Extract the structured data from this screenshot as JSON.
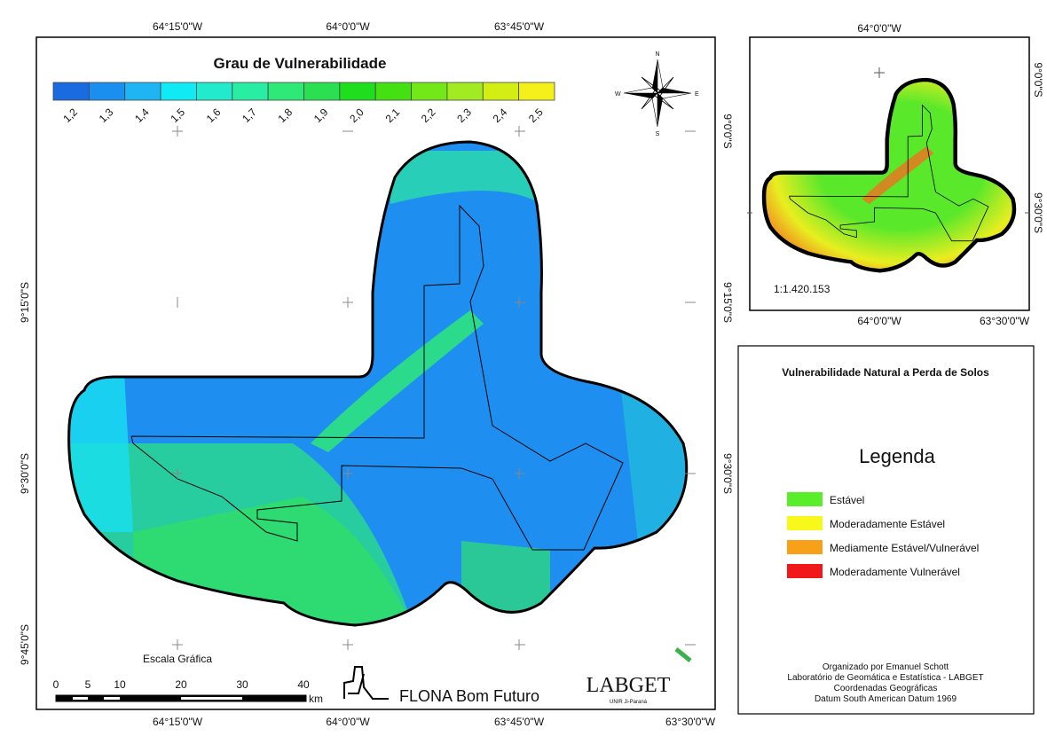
{
  "main_map": {
    "top_labels": [
      "64°15'0\"W",
      "64°0'0\"W",
      "63°45'0\"W"
    ],
    "bottom_labels": [
      "64°15'0\"W",
      "64°0'0\"W",
      "63°45'0\"W",
      "63°30'0\"W"
    ],
    "left_labels": [
      "9°15'0\"S",
      "9°30'0\"S",
      "9°45'0\"S"
    ],
    "right_labels": [
      "9°0'0\"S",
      "9°15'0\"S",
      "9°30'0\"S"
    ],
    "colorbar": {
      "title": "Grau de Vulnerabilidade",
      "classes": [
        {
          "label": "1,2",
          "color": "#1a6be0"
        },
        {
          "label": "1,3",
          "color": "#1b8fef"
        },
        {
          "label": "1,4",
          "color": "#1fb4f4"
        },
        {
          "label": "1,5",
          "color": "#10eaf5"
        },
        {
          "label": "1,6",
          "color": "#22eacc"
        },
        {
          "label": "1,7",
          "color": "#28eda2"
        },
        {
          "label": "1,8",
          "color": "#2ee878"
        },
        {
          "label": "1,9",
          "color": "#2ae050"
        },
        {
          "label": "2,0",
          "color": "#1ede1e"
        },
        {
          "label": "2,1",
          "color": "#44e012"
        },
        {
          "label": "2,2",
          "color": "#72e818"
        },
        {
          "label": "2,3",
          "color": "#a2ea22"
        },
        {
          "label": "2,4",
          "color": "#d2ee12"
        },
        {
          "label": "2,5",
          "color": "#f6f01a"
        }
      ]
    },
    "compass": {
      "n": "N",
      "s": "S",
      "e": "E",
      "w": "W"
    },
    "scale": {
      "title": "Escala Gráfica",
      "labels": [
        "0",
        "5",
        "10",
        "20",
        "30",
        "40"
      ],
      "unit": "km"
    },
    "area_label": "FLONA Bom Futuro",
    "logo": {
      "name": "LABGET",
      "sub": "UNIR Ji-Paraná"
    }
  },
  "inset_map": {
    "top_labels": [
      "64°0'0\"W"
    ],
    "bottom_labels": [
      "64°0'0\"W",
      "63°30'0\"W"
    ],
    "right_labels": [
      "9°0'0\"S",
      "9°30'0\"S"
    ],
    "scale_text": "1:1.420.153"
  },
  "legend_panel": {
    "title": "Vulnerabilidade Natural a Perda de Solos",
    "heading": "Legenda",
    "items": [
      {
        "label": "Estável",
        "color": "#5aee2a"
      },
      {
        "label": "Moderadamente Estável",
        "color": "#f8f81a"
      },
      {
        "label": "Mediamente Estável/Vulnerável",
        "color": "#f8a018"
      },
      {
        "label": "Moderadamente Vulnerável",
        "color": "#f01818"
      }
    ],
    "credits": [
      "Organizado por Emanuel Schott",
      "Laboratório de Geomática e Estatística - LABGET",
      "Coordenadas Geográficas",
      "Datum South American Datum 1969"
    ]
  }
}
